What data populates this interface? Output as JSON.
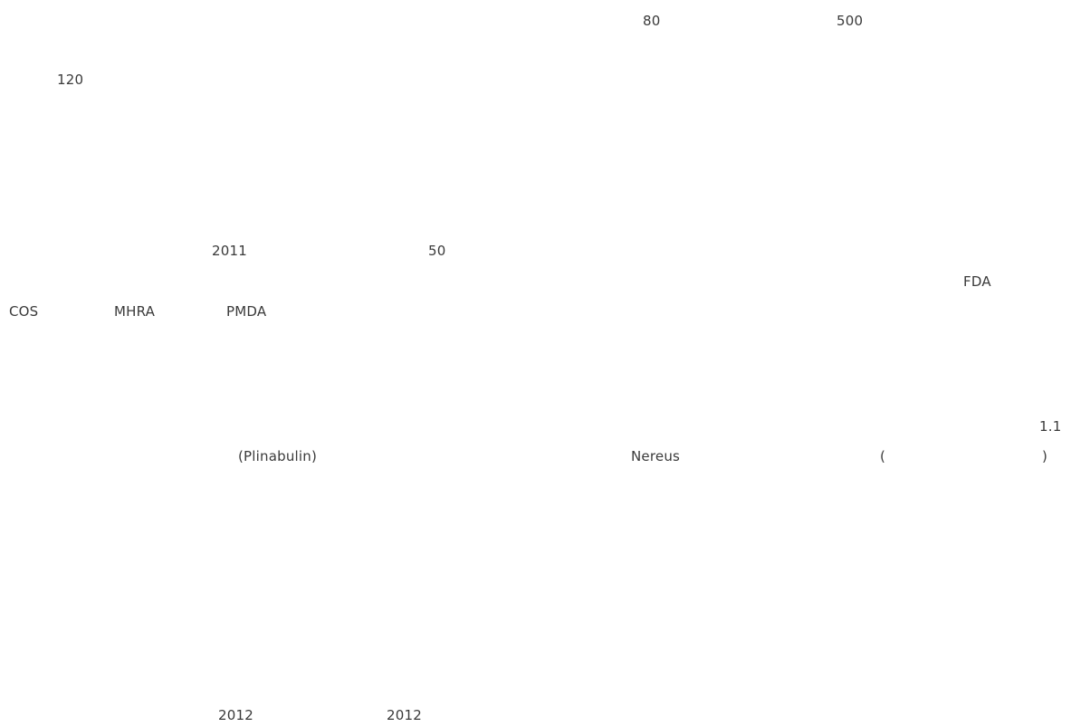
{
  "fragments": {
    "num_80": "80",
    "num_500": "500",
    "num_120": "120",
    "year_2011": "2011",
    "num_50": "50",
    "fda": "FDA",
    "cos": "COS",
    "mhra": "MHRA",
    "pmda": "PMDA",
    "num_1_1": "1.1",
    "plinabulin": "(Plinabulin)",
    "nereus": "Nereus",
    "paren_open": "(",
    "paren_close": ")",
    "year_2012_a": "2012",
    "year_2012_b": "2012"
  }
}
